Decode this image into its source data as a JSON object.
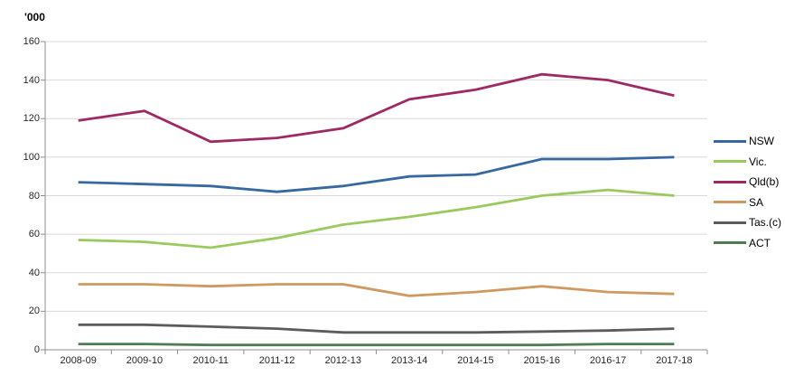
{
  "chart": {
    "unit_label": "'000"
  },
  "colors": {
    "background": "#ffffff",
    "gridline": "#d9d9d9",
    "axis": "#8e8e8e",
    "tick_text": "#262626"
  },
  "chart_data": {
    "type": "line",
    "title": "",
    "xlabel": "",
    "ylabel": "'000",
    "ylim": [
      0,
      160
    ],
    "ytick_step": 20,
    "ytick_labels": [
      "0",
      "20",
      "40",
      "60",
      "80",
      "100",
      "120",
      "140",
      "160"
    ],
    "grid": "horizontal",
    "legend_position": "right",
    "categories": [
      "2008-09",
      "2009-10",
      "2010-11",
      "2011-12",
      "2012-13",
      "2013-14",
      "2014-15",
      "2015-16",
      "2016-17",
      "2017-18"
    ],
    "series": [
      {
        "name": "NSW",
        "color": "#35699f",
        "values": [
          87,
          86,
          85,
          82,
          85,
          90,
          91,
          99,
          99,
          100
        ]
      },
      {
        "name": "Vic.",
        "color": "#9aca5e",
        "values": [
          57,
          56,
          53,
          58,
          65,
          69,
          74,
          80,
          83,
          80
        ]
      },
      {
        "name": "Qld(b)",
        "color": "#9e2a63",
        "values": [
          119,
          124,
          108,
          110,
          115,
          130,
          135,
          143,
          140,
          132
        ]
      },
      {
        "name": "SA",
        "color": "#cf9a61",
        "values": [
          34,
          34,
          33,
          34,
          34,
          28,
          30,
          33,
          30,
          29
        ]
      },
      {
        "name": "Tas.(c)",
        "color": "#5c5c5c",
        "values": [
          13,
          13,
          12,
          11,
          9,
          9,
          9,
          9.5,
          10,
          11
        ]
      },
      {
        "name": "ACT",
        "color": "#4c7e52",
        "values": [
          3,
          3,
          2.5,
          2.5,
          2.5,
          2.5,
          2.5,
          2.5,
          3,
          3
        ]
      }
    ]
  }
}
